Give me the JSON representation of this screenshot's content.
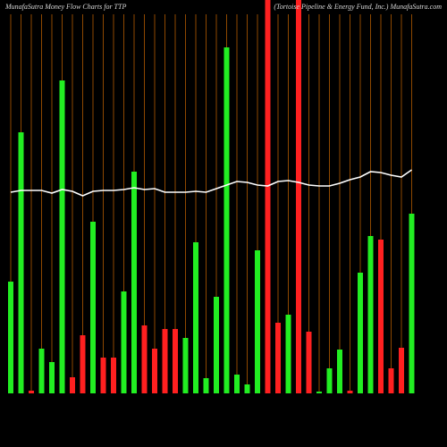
{
  "chart_data": {
    "type": "bar",
    "title": "MunafaSutra  Money Flow  Charts for TTP",
    "subtitle": "(Tortoise Pipeline & Energy Fund, Inc.) MunafaSutra.com",
    "ylim": [
      0,
      440
    ],
    "grid": true,
    "grid_color": "#b35a00",
    "values": [
      125,
      292,
      3,
      50,
      35,
      350,
      18,
      65,
      192,
      40,
      40,
      114,
      248,
      76,
      50,
      72,
      72,
      62,
      169,
      17,
      108,
      387,
      21,
      10,
      160,
      460,
      79,
      88,
      460,
      69,
      2,
      28,
      49,
      3,
      135,
      176,
      172,
      28,
      51,
      201
    ],
    "colors": [
      "#22ee22",
      "#22ee22",
      "#ff2020",
      "#22ee22",
      "#22ee22",
      "#22ee22",
      "#ff2020",
      "#ff2020",
      "#22ee22",
      "#ff2020",
      "#ff2020",
      "#22ee22",
      "#22ee22",
      "#ff2020",
      "#ff2020",
      "#ff2020",
      "#ff2020",
      "#22ee22",
      "#22ee22",
      "#22ee22",
      "#22ee22",
      "#22ee22",
      "#22ee22",
      "#22ee22",
      "#22ee22",
      "#ff2020",
      "#ff2020",
      "#22ee22",
      "#ff2020",
      "#ff2020",
      "#22ee22",
      "#22ee22",
      "#22ee22",
      "#ff2020",
      "#22ee22",
      "#22ee22",
      "#ff2020",
      "#ff2020",
      "#ff2020",
      "#22ee22"
    ],
    "line": {
      "color": "#ffffff",
      "values": [
        225,
        227,
        227,
        227,
        224,
        228,
        226,
        221,
        226,
        227,
        227,
        228,
        230,
        228,
        229,
        225,
        225,
        225,
        226,
        225,
        229,
        233,
        237,
        236,
        233,
        232,
        237,
        238,
        236,
        233,
        232,
        232,
        235,
        239,
        242,
        248,
        247,
        244,
        242,
        250
      ]
    }
  }
}
